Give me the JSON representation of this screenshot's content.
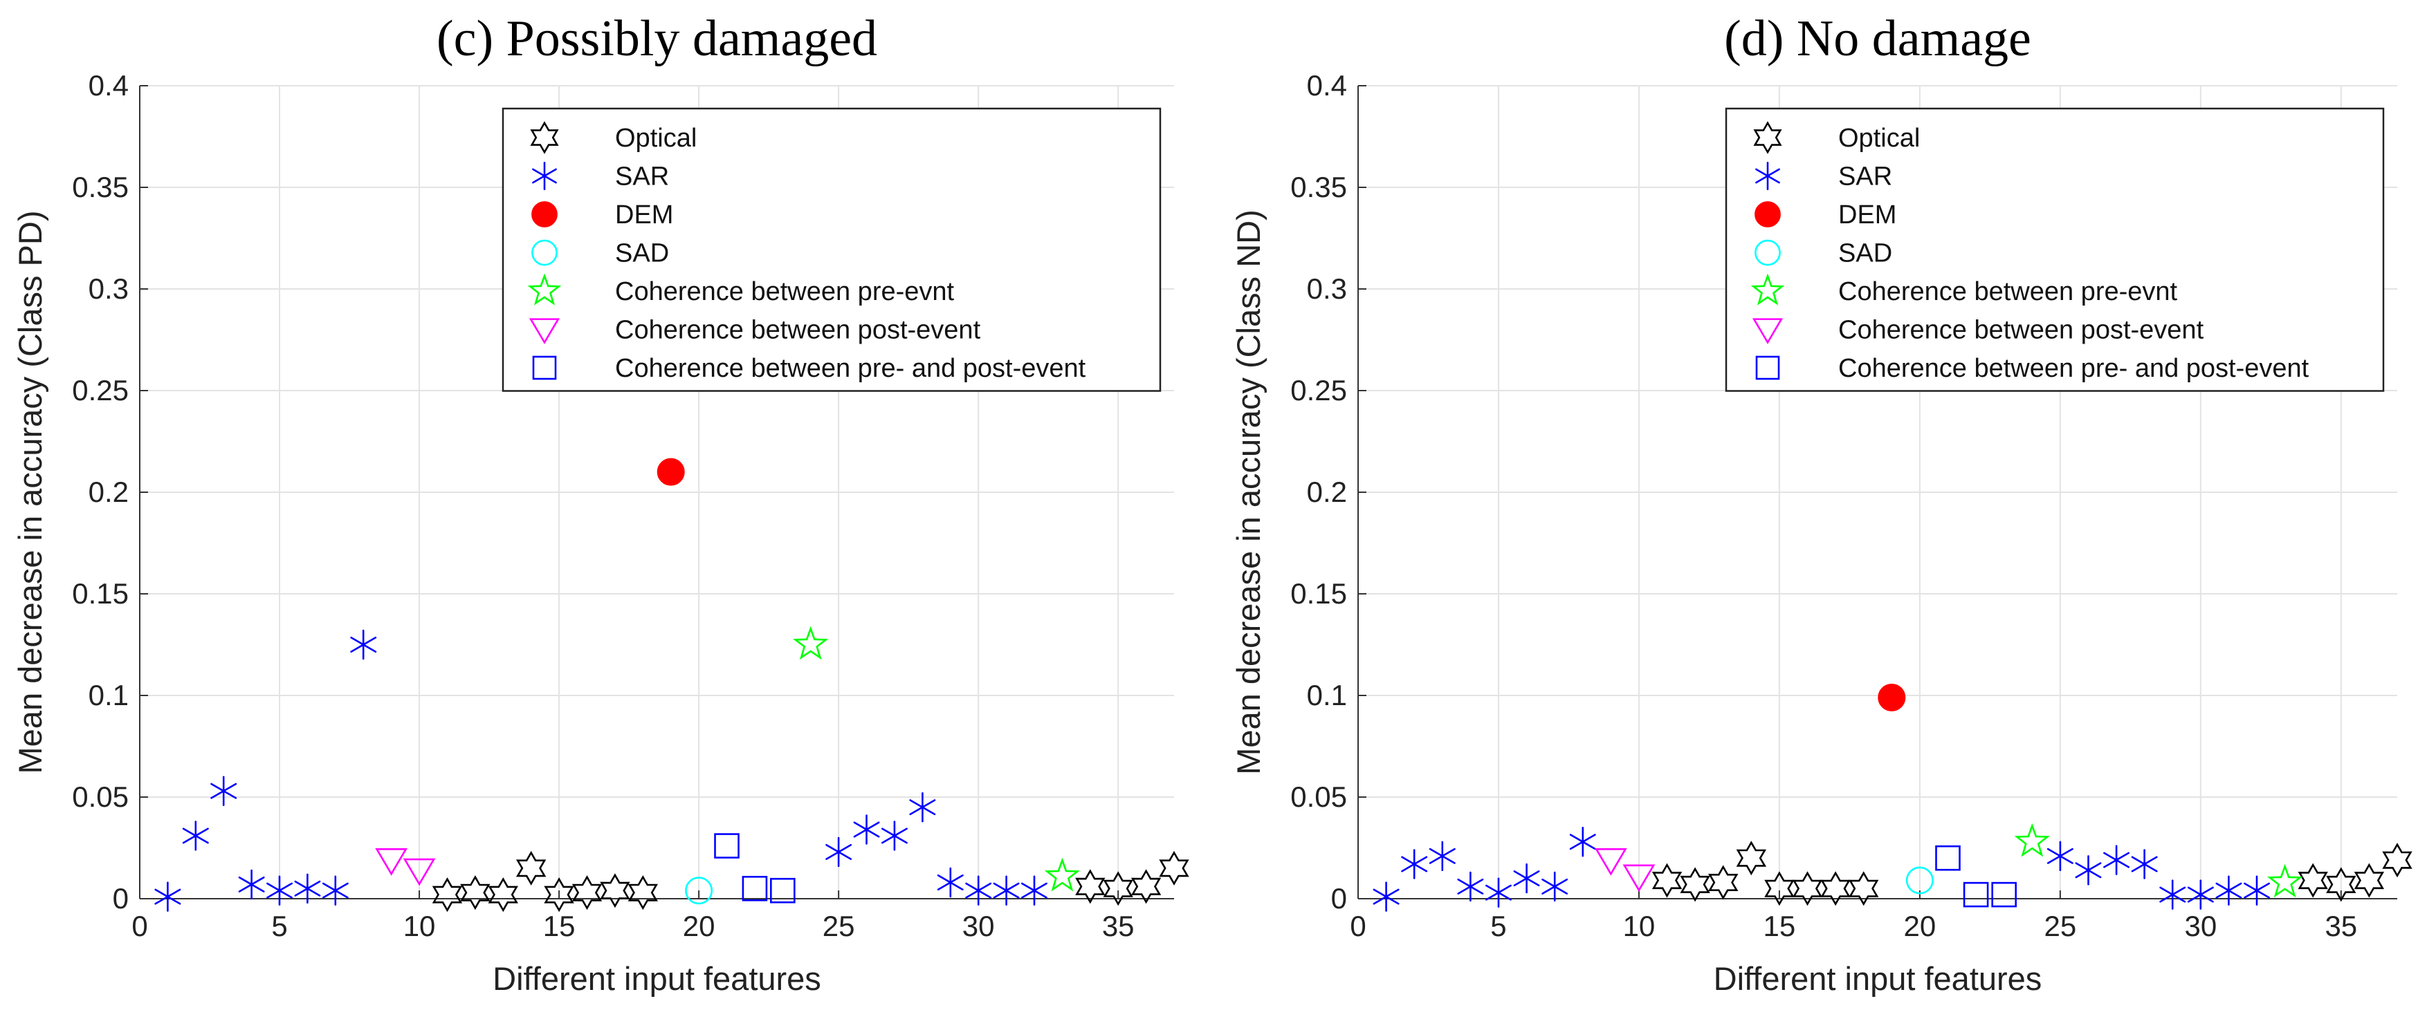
{
  "chart_data": [
    {
      "type": "scatter",
      "title": "(c) Possibly damaged",
      "xlabel": "Different input features",
      "ylabel": "Mean decrease in accuracy (Class PD)",
      "xlim": [
        0,
        37
      ],
      "ylim": [
        0,
        0.4
      ],
      "xticks": [
        0,
        5,
        10,
        15,
        20,
        25,
        30,
        35
      ],
      "yticks": [
        0,
        0.05,
        0.1,
        0.15,
        0.2,
        0.25,
        0.3,
        0.35,
        0.4
      ],
      "grid": true,
      "legend_position": "top-right",
      "series": [
        {
          "name": "Optical",
          "marker": "hexagram",
          "color": "#000000",
          "filled": false,
          "x": [
            11,
            12,
            13,
            14,
            15,
            16,
            17,
            18,
            34,
            35,
            36,
            37
          ],
          "y": [
            0.002,
            0.003,
            0.002,
            0.015,
            0.002,
            0.003,
            0.004,
            0.003,
            0.006,
            0.005,
            0.006,
            0.015
          ]
        },
        {
          "name": "SAR",
          "marker": "asterisk",
          "color": "#0000ff",
          "filled": false,
          "x": [
            1,
            2,
            3,
            4,
            5,
            6,
            7,
            8,
            25,
            26,
            27,
            28,
            29,
            30,
            31,
            32
          ],
          "y": [
            0.001,
            0.031,
            0.053,
            0.007,
            0.004,
            0.005,
            0.004,
            0.125,
            0.023,
            0.034,
            0.031,
            0.045,
            0.008,
            0.004,
            0.004,
            0.004
          ]
        },
        {
          "name": "DEM",
          "marker": "circle",
          "color": "#ff0000",
          "filled": true,
          "x": [
            19
          ],
          "y": [
            0.21
          ]
        },
        {
          "name": "SAD",
          "marker": "circle",
          "color": "#00ffff",
          "filled": false,
          "x": [
            20
          ],
          "y": [
            0.004
          ]
        },
        {
          "name": "Coherence between pre-evnt",
          "marker": "pentagram",
          "color": "#00ff00",
          "filled": false,
          "x": [
            24,
            33
          ],
          "y": [
            0.125,
            0.011
          ]
        },
        {
          "name": "Coherence between post-event",
          "marker": "triangle-down",
          "color": "#ff00ff",
          "filled": false,
          "x": [
            9,
            10
          ],
          "y": [
            0.019,
            0.014
          ]
        },
        {
          "name": "Coherence between pre- and post-event",
          "marker": "square",
          "color": "#0000ff",
          "filled": false,
          "x": [
            21,
            22,
            23
          ],
          "y": [
            0.026,
            0.005,
            0.004
          ]
        }
      ]
    },
    {
      "type": "scatter",
      "title": "(d) No damage",
      "xlabel": "Different input features",
      "ylabel": "Mean decrease in accuracy (Class ND)",
      "xlim": [
        0,
        37
      ],
      "ylim": [
        0,
        0.4
      ],
      "xticks": [
        0,
        5,
        10,
        15,
        20,
        25,
        30,
        35
      ],
      "yticks": [
        0,
        0.05,
        0.1,
        0.15,
        0.2,
        0.25,
        0.3,
        0.35,
        0.4
      ],
      "grid": true,
      "legend_position": "top-right",
      "series": [
        {
          "name": "Optical",
          "marker": "hexagram",
          "color": "#000000",
          "filled": false,
          "x": [
            11,
            12,
            13,
            14,
            15,
            16,
            17,
            18,
            34,
            35,
            36,
            37
          ],
          "y": [
            0.009,
            0.007,
            0.008,
            0.02,
            0.005,
            0.005,
            0.005,
            0.005,
            0.009,
            0.007,
            0.009,
            0.019
          ]
        },
        {
          "name": "SAR",
          "marker": "asterisk",
          "color": "#0000ff",
          "filled": false,
          "x": [
            1,
            2,
            3,
            4,
            5,
            6,
            7,
            8,
            25,
            26,
            27,
            28,
            29,
            30,
            31,
            32
          ],
          "y": [
            0.001,
            0.017,
            0.021,
            0.006,
            0.003,
            0.01,
            0.006,
            0.028,
            0.021,
            0.014,
            0.019,
            0.017,
            0.002,
            0.002,
            0.004,
            0.004
          ]
        },
        {
          "name": "DEM",
          "marker": "circle",
          "color": "#ff0000",
          "filled": true,
          "x": [
            19
          ],
          "y": [
            0.099
          ]
        },
        {
          "name": "SAD",
          "marker": "circle",
          "color": "#00ffff",
          "filled": false,
          "x": [
            20
          ],
          "y": [
            0.009
          ]
        },
        {
          "name": "Coherence between pre-evnt",
          "marker": "pentagram",
          "color": "#00ff00",
          "filled": false,
          "x": [
            24,
            33
          ],
          "y": [
            0.028,
            0.008
          ]
        },
        {
          "name": "Coherence between post-event",
          "marker": "triangle-down",
          "color": "#ff00ff",
          "filled": false,
          "x": [
            9,
            10
          ],
          "y": [
            0.019,
            0.011
          ]
        },
        {
          "name": "Coherence between pre- and post-event",
          "marker": "square",
          "color": "#0000ff",
          "filled": false,
          "x": [
            21,
            22,
            23
          ],
          "y": [
            0.02,
            0.002,
            0.002
          ]
        }
      ]
    }
  ]
}
